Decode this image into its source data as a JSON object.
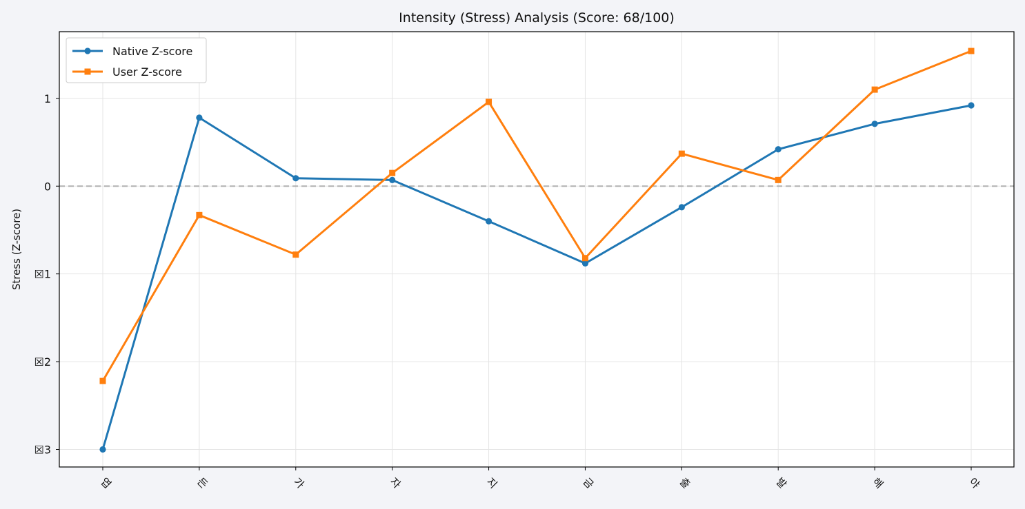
{
  "chart_data": {
    "type": "line",
    "title": "Intensity (Stress) Analysis (Score: 68/100)",
    "xlabel": "",
    "ylabel": "Stress (Z-score)",
    "categories": [
      "엽",
      "든",
      "가",
      "자",
      "지",
      "금",
      "출",
      "발",
      "해",
      "야"
    ],
    "series": [
      {
        "name": "Native Z-score",
        "color": "#1f77b4",
        "marker": "circle",
        "values": [
          -3.0,
          0.78,
          0.09,
          0.07,
          -0.4,
          -0.88,
          -0.24,
          0.42,
          0.71,
          0.92
        ]
      },
      {
        "name": "User Z-score",
        "color": "#ff7f0e",
        "marker": "square",
        "values": [
          -2.22,
          -0.33,
          -0.78,
          0.15,
          0.96,
          -0.82,
          0.37,
          0.07,
          1.1,
          1.54
        ]
      }
    ],
    "yticks": [
      1,
      0,
      -1,
      -2,
      -3
    ],
    "ytick_labels": [
      "1",
      "0",
      "☒1",
      "☒2",
      "☒3"
    ],
    "ylim": [
      -3.2,
      1.76
    ],
    "grid": true,
    "reference_line": 0,
    "reference_line_color": "#b0b0b0",
    "legend_position": "top-left"
  }
}
